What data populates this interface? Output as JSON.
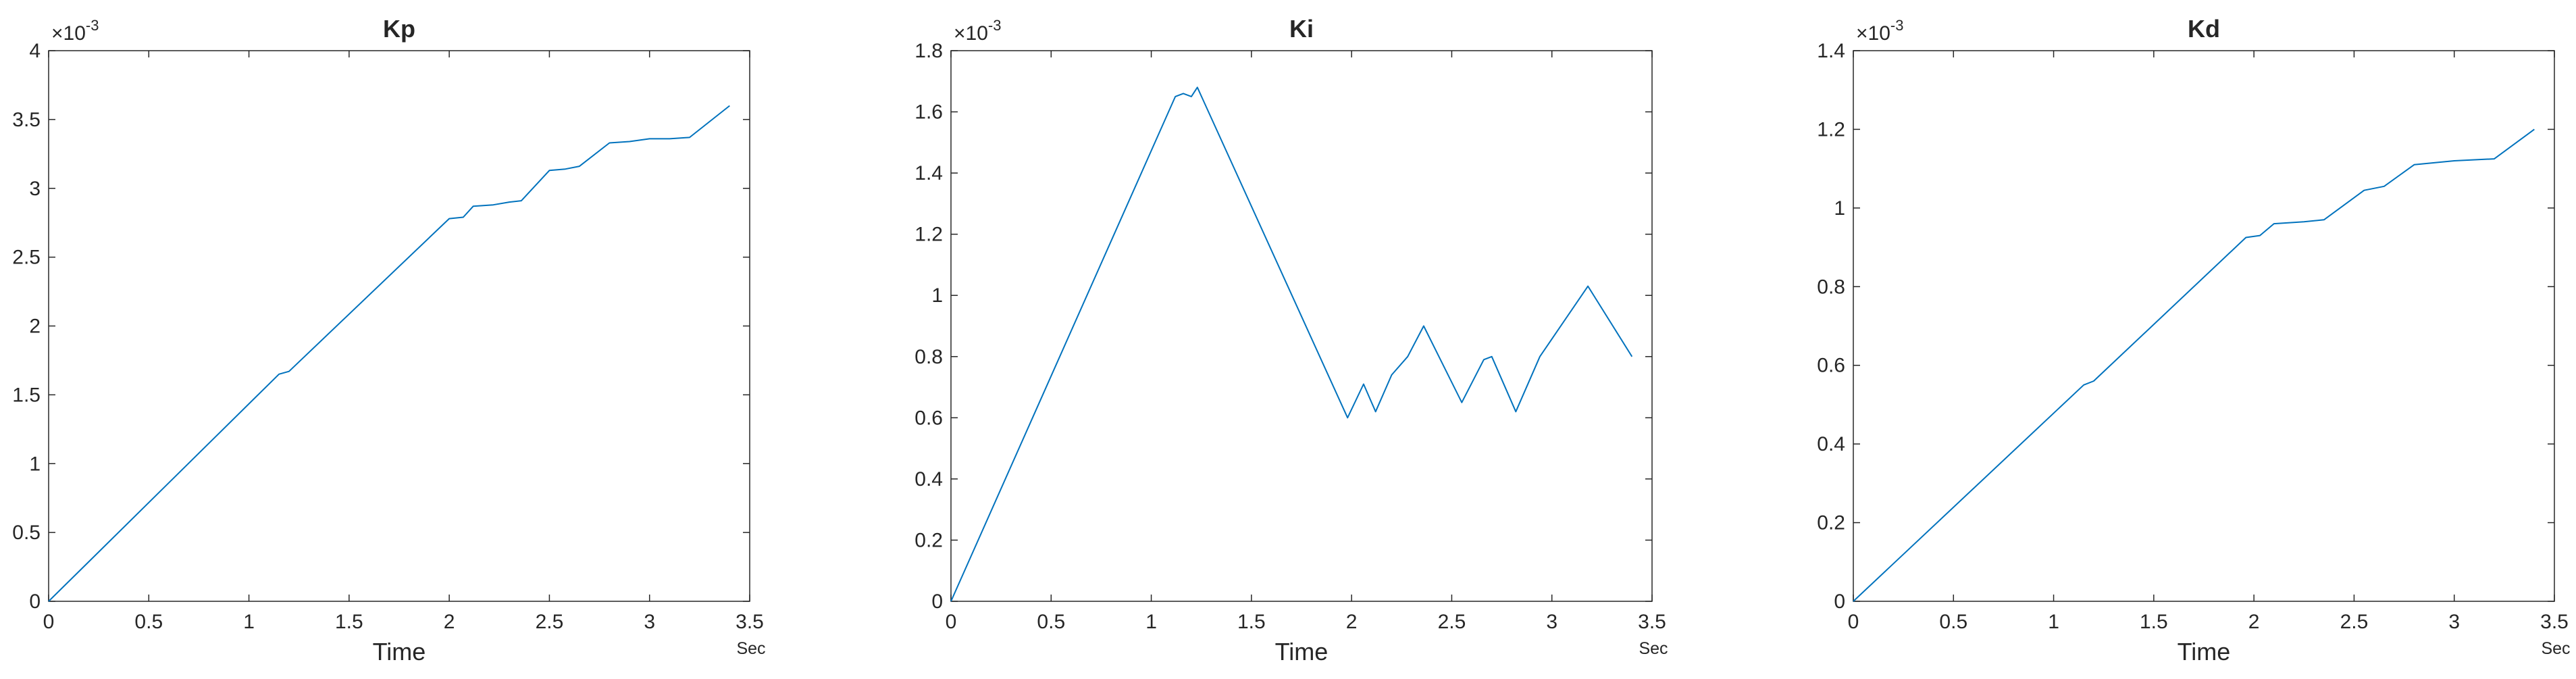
{
  "figure": {
    "series_color": "#0072BD",
    "axis_color": "#262626",
    "background": "#ffffff"
  },
  "chart_data": [
    {
      "type": "line",
      "title": "Kp",
      "xlabel": "Time",
      "x_unit_label": "Sec",
      "ylabel": "",
      "y_exponent_base": "×10",
      "y_exponent_power": "-3",
      "xlim": [
        0,
        3.5
      ],
      "ylim": [
        0,
        4
      ],
      "x_ticks": [
        0,
        0.5,
        1,
        1.5,
        2,
        2.5,
        3,
        3.5
      ],
      "y_ticks": [
        0,
        0.5,
        1,
        1.5,
        2,
        2.5,
        3,
        3.5,
        4
      ],
      "x_tick_labels": [
        "0",
        "0.5",
        "1",
        "1.5",
        "2",
        "2.5",
        "3",
        "3.5"
      ],
      "y_tick_labels": [
        "0",
        "0.5",
        "1",
        "1.5",
        "2",
        "2.5",
        "3",
        "3.5",
        "4"
      ],
      "grid": false,
      "series": [
        {
          "x": [
            0,
            1.15,
            1.2,
            2.0,
            2.07,
            2.12,
            2.22,
            2.3,
            2.36,
            2.5,
            2.58,
            2.65,
            2.8,
            2.9,
            3.0,
            3.1,
            3.2,
            3.4
          ],
          "y": [
            0,
            1.65,
            1.67,
            2.78,
            2.79,
            2.87,
            2.88,
            2.9,
            2.91,
            3.13,
            3.14,
            3.16,
            3.33,
            3.34,
            3.36,
            3.36,
            3.37,
            3.6
          ]
        }
      ]
    },
    {
      "type": "line",
      "title": "Ki",
      "xlabel": "Time",
      "x_unit_label": "Sec",
      "ylabel": "",
      "y_exponent_base": "×10",
      "y_exponent_power": "-3",
      "xlim": [
        0,
        3.5
      ],
      "ylim": [
        0,
        1.8
      ],
      "x_ticks": [
        0,
        0.5,
        1,
        1.5,
        2,
        2.5,
        3,
        3.5
      ],
      "y_ticks": [
        0,
        0.2,
        0.4,
        0.6,
        0.8,
        1,
        1.2,
        1.4,
        1.6,
        1.8
      ],
      "x_tick_labels": [
        "0",
        "0.5",
        "1",
        "1.5",
        "2",
        "2.5",
        "3",
        "3.5"
      ],
      "y_tick_labels": [
        "0",
        "0.2",
        "0.4",
        "0.6",
        "0.8",
        "1",
        "1.2",
        "1.4",
        "1.6",
        "1.8"
      ],
      "grid": false,
      "series": [
        {
          "x": [
            0,
            1.12,
            1.16,
            1.2,
            1.23,
            1.98,
            2.06,
            2.12,
            2.2,
            2.28,
            2.36,
            2.55,
            2.66,
            2.7,
            2.82,
            2.94,
            3.18,
            3.4
          ],
          "y": [
            0,
            1.65,
            1.66,
            1.65,
            1.68,
            0.6,
            0.71,
            0.62,
            0.74,
            0.8,
            0.9,
            0.65,
            0.79,
            0.8,
            0.62,
            0.8,
            1.03,
            0.8
          ]
        }
      ]
    },
    {
      "type": "line",
      "title": "Kd",
      "xlabel": "Time",
      "x_unit_label": "Sec",
      "ylabel": "",
      "y_exponent_base": "×10",
      "y_exponent_power": "-3",
      "xlim": [
        0,
        3.5
      ],
      "ylim": [
        0,
        1.4
      ],
      "x_ticks": [
        0,
        0.5,
        1,
        1.5,
        2,
        2.5,
        3,
        3.5
      ],
      "y_ticks": [
        0,
        0.2,
        0.4,
        0.6,
        0.8,
        1,
        1.2,
        1.4
      ],
      "x_tick_labels": [
        "0",
        "0.5",
        "1",
        "1.5",
        "2",
        "2.5",
        "3",
        "3.5"
      ],
      "y_tick_labels": [
        "0",
        "0.2",
        "0.4",
        "0.6",
        "0.8",
        "1",
        "1.2",
        "1.4"
      ],
      "grid": false,
      "series": [
        {
          "x": [
            0,
            1.15,
            1.2,
            1.96,
            2.03,
            2.1,
            2.25,
            2.35,
            2.55,
            2.65,
            2.8,
            2.9,
            3.0,
            3.2,
            3.4
          ],
          "y": [
            0,
            0.55,
            0.56,
            0.925,
            0.93,
            0.96,
            0.965,
            0.97,
            1.045,
            1.055,
            1.11,
            1.115,
            1.12,
            1.125,
            1.2
          ]
        }
      ]
    }
  ]
}
